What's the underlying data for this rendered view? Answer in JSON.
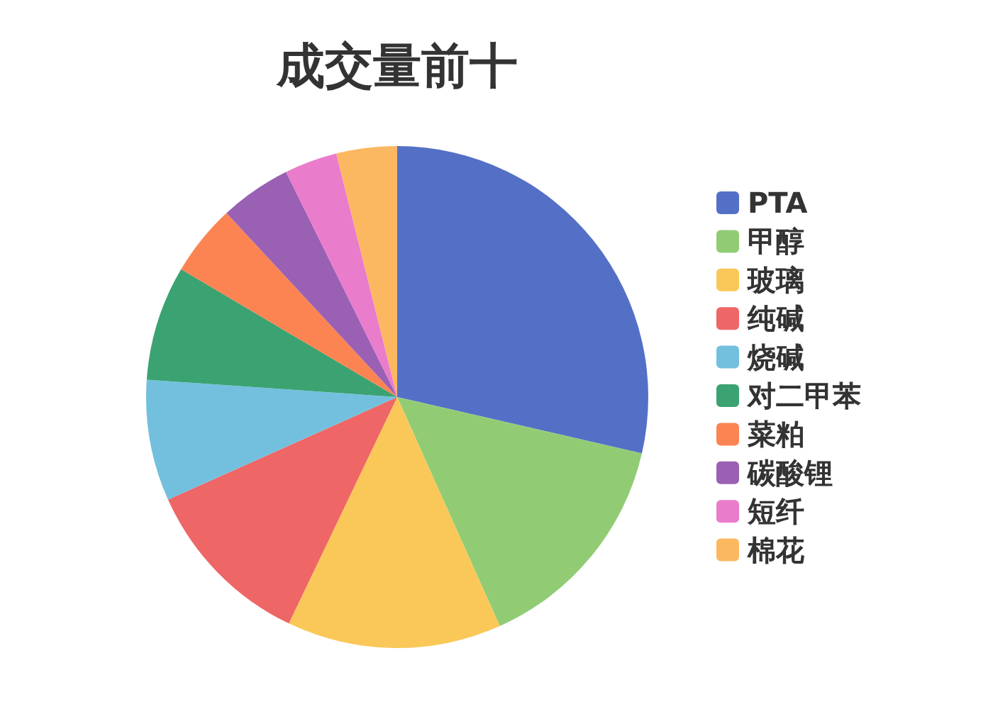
{
  "chart_data": {
    "type": "pie",
    "title": "成交量前十",
    "categories": [
      "PTA",
      "甲醇",
      "玻璃",
      "纯碱",
      "烧碱",
      "对二甲苯",
      "菜粕",
      "碳酸锂",
      "短纤",
      "棉花"
    ],
    "values": [
      28.6,
      14.7,
      13.8,
      11.2,
      7.8,
      7.4,
      4.6,
      4.6,
      3.4,
      3.9
    ],
    "colors": [
      "#5470c6",
      "#91cc75",
      "#fac858",
      "#ee6666",
      "#73c0de",
      "#3ba272",
      "#fc8452",
      "#9a60b4",
      "#ea7ccc",
      "#fbb860"
    ],
    "legend": "right"
  }
}
